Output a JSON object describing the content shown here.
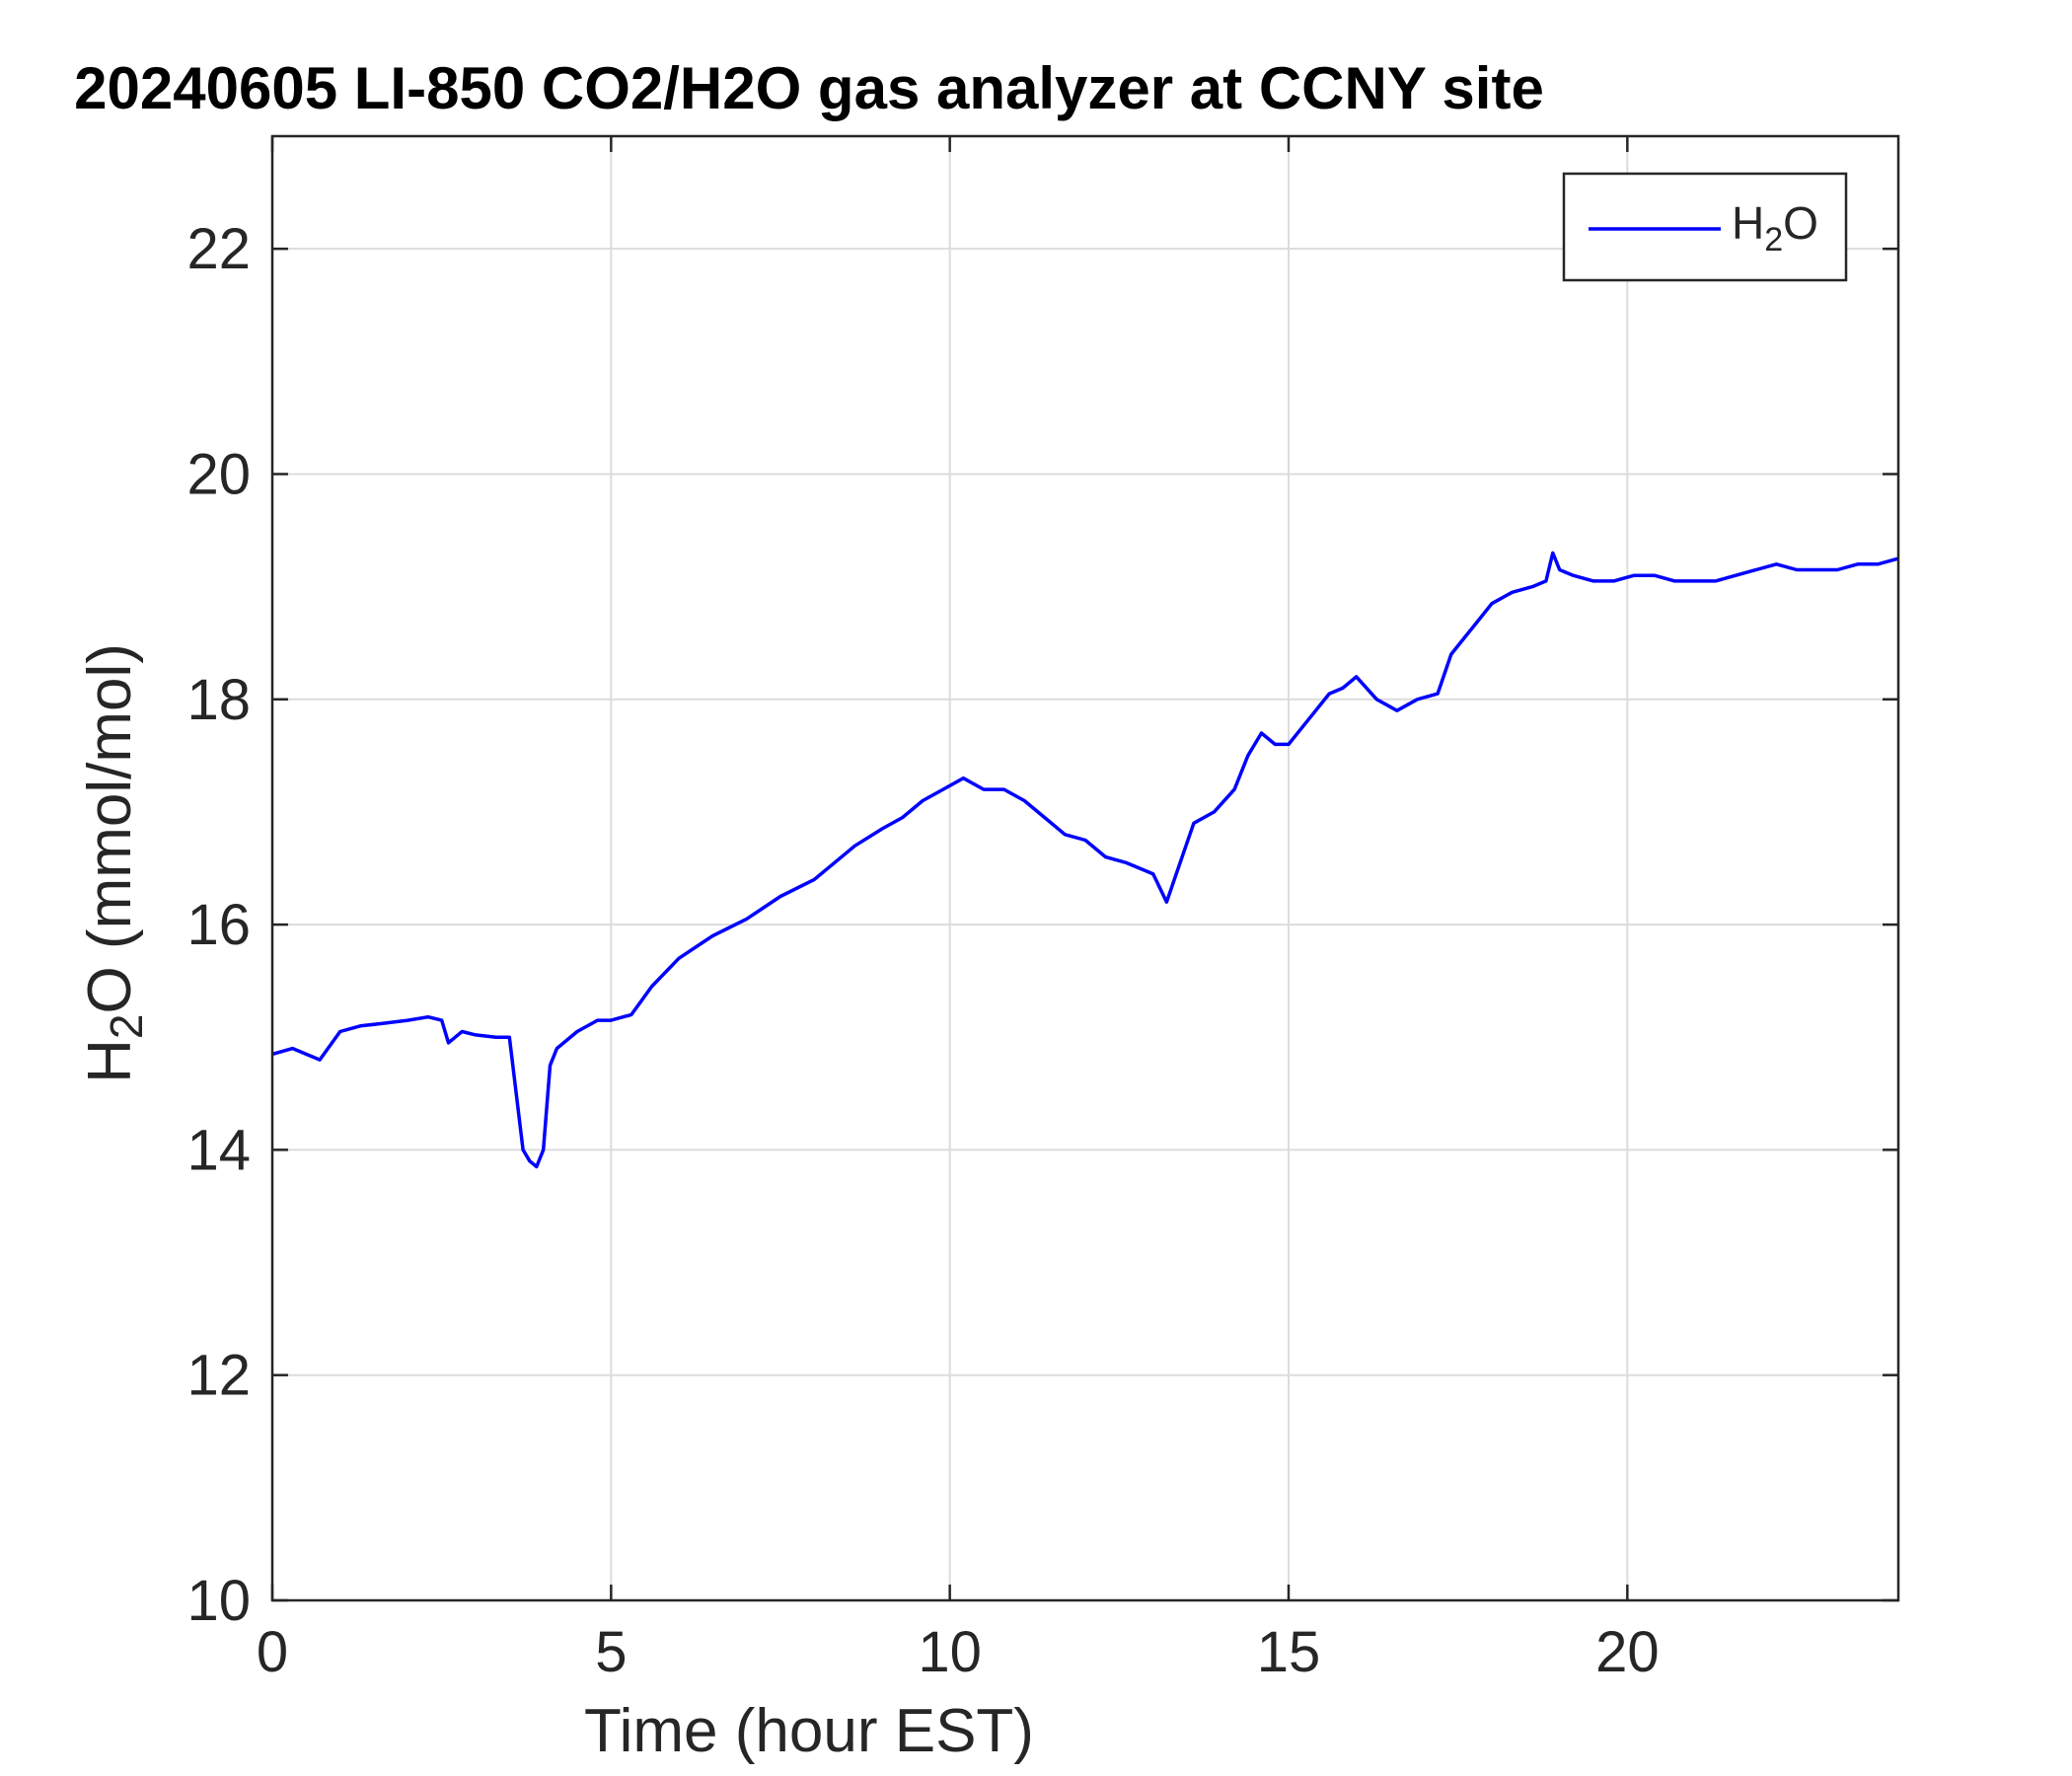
{
  "chart_data": {
    "type": "line",
    "title": "20240605 LI-850 CO2/H2O gas analyzer at CCNY site",
    "xlabel": "Time (hour EST)",
    "ylabel": {
      "base": "H",
      "sub": "2",
      "rest": "O (mmol/mol)"
    },
    "xlim": [
      0,
      24
    ],
    "ylim": [
      10,
      23
    ],
    "xticks": [
      0,
      5,
      10,
      15,
      20
    ],
    "yticks": [
      10,
      12,
      14,
      16,
      18,
      20,
      22
    ],
    "grid": true,
    "legend_position": "top-right",
    "series": [
      {
        "name": {
          "base": "H",
          "sub": "2",
          "rest": "O"
        },
        "color": "#0000ff",
        "x": [
          0.0,
          0.3,
          0.5,
          0.7,
          1.0,
          1.3,
          1.6,
          2.0,
          2.3,
          2.5,
          2.6,
          2.7,
          2.8,
          3.0,
          3.3,
          3.5,
          3.6,
          3.7,
          3.8,
          3.9,
          4.0,
          4.1,
          4.2,
          4.5,
          4.8,
          5.0,
          5.3,
          5.6,
          6.0,
          6.5,
          7.0,
          7.5,
          8.0,
          8.3,
          8.6,
          9.0,
          9.3,
          9.6,
          9.9,
          10.2,
          10.5,
          10.8,
          11.1,
          11.4,
          11.7,
          12.0,
          12.3,
          12.6,
          12.8,
          13.0,
          13.2,
          13.4,
          13.6,
          13.9,
          14.2,
          14.4,
          14.6,
          14.8,
          15.0,
          15.2,
          15.4,
          15.6,
          15.8,
          16.0,
          16.3,
          16.6,
          16.9,
          17.2,
          17.4,
          17.6,
          17.8,
          18.0,
          18.3,
          18.6,
          18.8,
          18.9,
          19.0,
          19.2,
          19.5,
          19.8,
          20.1,
          20.4,
          20.7,
          21.0,
          21.3,
          21.6,
          21.9,
          22.2,
          22.5,
          22.8,
          23.1,
          23.4,
          23.7,
          24.0
        ],
        "y": [
          14.85,
          14.9,
          14.85,
          14.8,
          15.05,
          15.1,
          15.12,
          15.15,
          15.18,
          15.15,
          14.95,
          15.0,
          15.05,
          15.02,
          15.0,
          15.0,
          14.5,
          14.0,
          13.9,
          13.85,
          14.0,
          14.75,
          14.9,
          15.05,
          15.15,
          15.15,
          15.2,
          15.45,
          15.7,
          15.9,
          16.05,
          16.25,
          16.4,
          16.55,
          16.7,
          16.85,
          16.95,
          17.1,
          17.2,
          17.3,
          17.2,
          17.2,
          17.1,
          16.95,
          16.8,
          16.75,
          16.6,
          16.55,
          16.5,
          16.45,
          16.2,
          16.55,
          16.9,
          17.0,
          17.2,
          17.5,
          17.7,
          17.6,
          17.6,
          17.75,
          17.9,
          18.05,
          18.1,
          18.2,
          18.0,
          17.9,
          18.0,
          18.05,
          18.4,
          18.55,
          18.7,
          18.85,
          18.95,
          19.0,
          19.05,
          19.3,
          19.15,
          19.1,
          19.05,
          19.05,
          19.1,
          19.1,
          19.05,
          19.05,
          19.05,
          19.1,
          19.15,
          19.2,
          19.15,
          19.15,
          19.15,
          19.2,
          19.2,
          19.25
        ]
      }
    ]
  }
}
